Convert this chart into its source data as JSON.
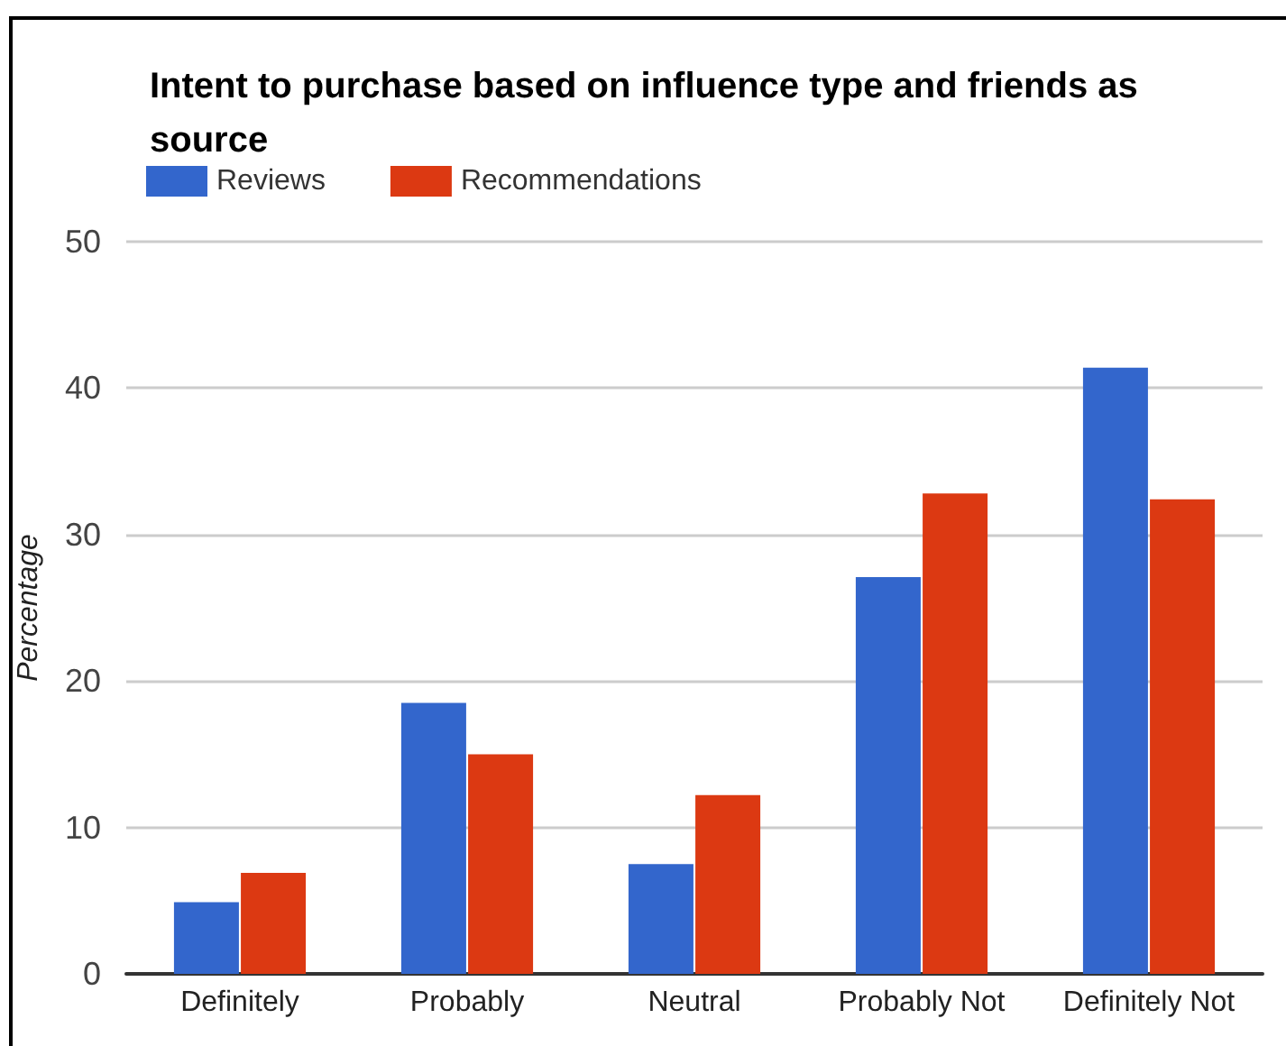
{
  "chart_data": {
    "type": "bar",
    "title": "Intent to purchase based on influence type and friends as source",
    "ylabel": "Percentage",
    "categories": [
      "Definitely",
      "Probably",
      "Neutral",
      "Probably Not",
      "Definitely Not"
    ],
    "series": [
      {
        "name": "Reviews",
        "color": "#3366cc",
        "values": [
          4.9,
          18.5,
          7.5,
          27.1,
          41.4
        ]
      },
      {
        "name": "Recommendations",
        "color": "#dc3912",
        "values": [
          6.9,
          15.0,
          12.2,
          32.8,
          32.4
        ]
      }
    ],
    "ylim": [
      0,
      50
    ],
    "yticks": [
      0,
      10,
      20,
      30,
      40,
      50
    ],
    "grid": "y",
    "legend": "top left"
  }
}
